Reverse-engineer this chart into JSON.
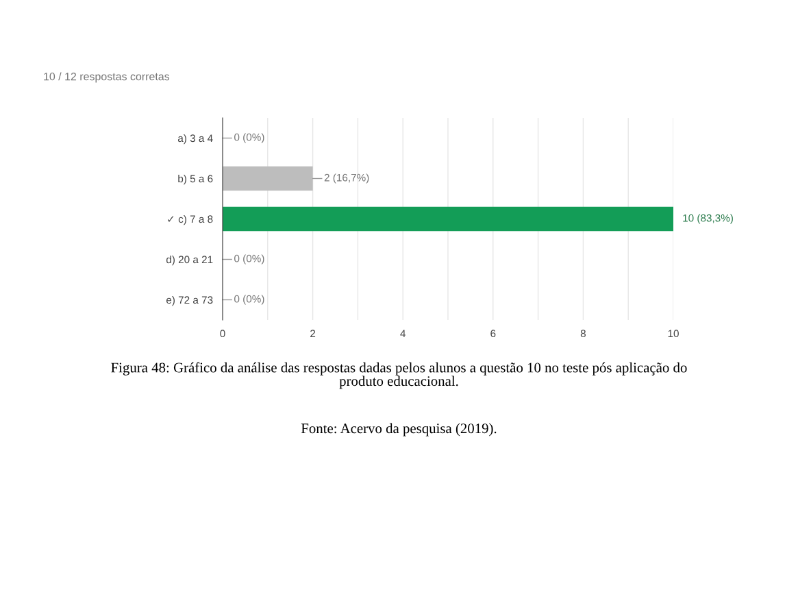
{
  "chart_data": {
    "type": "bar",
    "orientation": "horizontal",
    "title": "10 / 12 respostas corretas",
    "categories": [
      "a) 3 a 4",
      "b) 5 a 6",
      "✓ c) 7 a 8",
      "d) 20 a 21",
      "e) 72 a 73"
    ],
    "values": [
      0,
      2,
      10,
      0,
      0
    ],
    "colors": [
      "#bdbdbd",
      "#bdbdbd",
      "#139d57",
      "#bdbdbd",
      "#bdbdbd"
    ],
    "value_labels": [
      "0 (0%)",
      "2 (16,7%)",
      "10 (83,3%)",
      "0 (0%)",
      "0 (0%)"
    ],
    "xlim": [
      0,
      10
    ],
    "xticks": [
      0,
      {
        "value": 1,
        "label": null
      },
      2,
      {
        "value": 3,
        "label": null
      },
      4,
      {
        "value": 5,
        "label": null
      },
      6,
      {
        "value": 7,
        "label": null
      },
      8,
      {
        "value": 9,
        "label": null
      },
      10
    ],
    "grid": "x",
    "annotations": [
      "Figura 48: Gráfico da análise das respostas dadas pelos alunos a questão 10 no teste pós aplicação do\nproduto educacional.",
      "Fonte: Acervo da pesquisa (2019)."
    ]
  }
}
